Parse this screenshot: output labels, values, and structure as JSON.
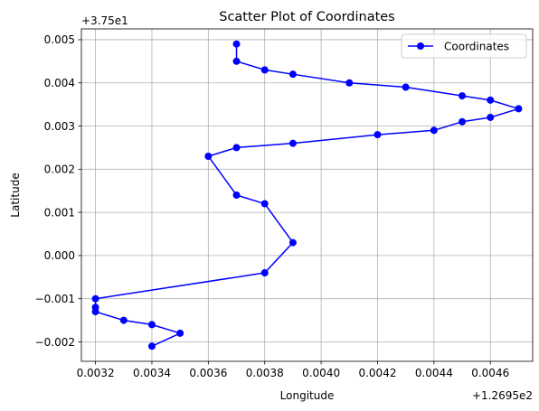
{
  "chart_data": {
    "type": "line",
    "title": "Scatter Plot of Coordinates",
    "xlabel": "Longitude",
    "ylabel": "Latitude",
    "x_offset_label": "+1.2695e2",
    "y_offset_label": "+3.75e1",
    "xlim": [
      0.00315,
      0.00475
    ],
    "ylim": [
      -0.00245,
      0.00525
    ],
    "x_ticks": [
      0.0032,
      0.0034,
      0.0036,
      0.0038,
      0.004,
      0.0042,
      0.0044,
      0.0046
    ],
    "x_tick_labels": [
      "0.0032",
      "0.0034",
      "0.0036",
      "0.0038",
      "0.0040",
      "0.0042",
      "0.0044",
      "0.0046"
    ],
    "y_ticks": [
      -0.002,
      -0.001,
      0.0,
      0.001,
      0.002,
      0.003,
      0.004,
      0.005
    ],
    "y_tick_labels": [
      "−0.002",
      "−0.001",
      "0.000",
      "0.001",
      "0.002",
      "0.003",
      "0.004",
      "0.005"
    ],
    "grid": true,
    "legend_position": "top-right",
    "series": [
      {
        "name": "Coordinates",
        "color": "#0000ff",
        "marker": "circle",
        "x": [
          0.0037,
          0.0037,
          0.0038,
          0.0039,
          0.0041,
          0.0043,
          0.0045,
          0.0046,
          0.0047,
          0.0046,
          0.0045,
          0.0044,
          0.0042,
          0.0039,
          0.0037,
          0.0036,
          0.0037,
          0.0038,
          0.0039,
          0.0038,
          0.0032,
          0.0032,
          0.0032,
          0.0033,
          0.0034,
          0.0035,
          0.0034
        ],
        "y": [
          0.0049,
          0.0045,
          0.0043,
          0.0042,
          0.004,
          0.0039,
          0.0037,
          0.0036,
          0.0034,
          0.0032,
          0.0031,
          0.0029,
          0.0028,
          0.0026,
          0.0025,
          0.0023,
          0.0014,
          0.0012,
          0.0003,
          -0.0004,
          -0.001,
          -0.0012,
          -0.0013,
          -0.0015,
          -0.0016,
          -0.0018,
          -0.0021
        ]
      }
    ]
  }
}
